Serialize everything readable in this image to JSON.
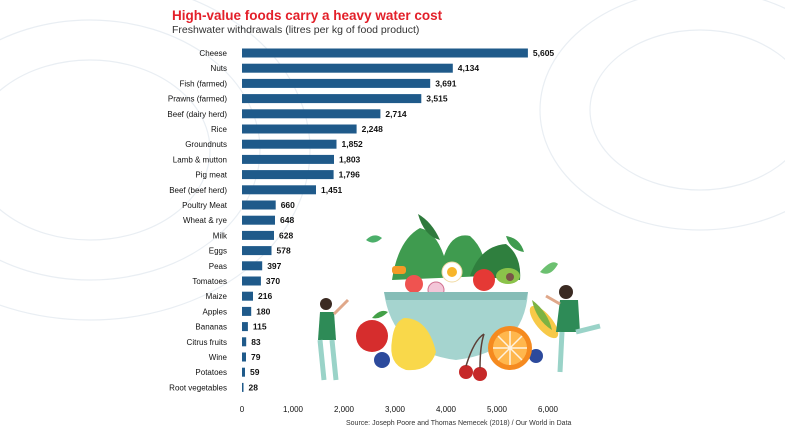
{
  "chart_data": {
    "type": "bar",
    "orientation": "horizontal",
    "title": "High-value foods carry a heavy water cost",
    "subtitle": "Freshwater withdrawals (litres per kg of food product)",
    "categories": [
      "Cheese",
      "Nuts",
      "Fish (farmed)",
      "Prawns (farmed)",
      "Beef (dairy herd)",
      "Rice",
      "Groundnuts",
      "Lamb & mutton",
      "Pig meat",
      "Beef (beef herd)",
      "Poultry Meat",
      "Wheat & rye",
      "Milk",
      "Eggs",
      "Peas",
      "Tomatoes",
      "Maize",
      "Apples",
      "Bananas",
      "Citrus fruits",
      "Wine",
      "Potatoes",
      "Root vegetables"
    ],
    "values": [
      5605,
      4134,
      3691,
      3515,
      2714,
      2248,
      1852,
      1803,
      1796,
      1451,
      660,
      648,
      628,
      578,
      397,
      370,
      216,
      180,
      115,
      83,
      79,
      59,
      28
    ],
    "value_labels": [
      "5,605",
      "4,134",
      "3,691",
      "3,515",
      "2,714",
      "2,248",
      "1,852",
      "1,803",
      "1,796",
      "1,451",
      "660",
      "648",
      "628",
      "578",
      "397",
      "370",
      "216",
      "180",
      "115",
      "83",
      "79",
      "59",
      "28"
    ],
    "xlim": [
      0,
      6000
    ],
    "xticks": [
      0,
      1000,
      2000,
      3000,
      4000,
      5000,
      6000
    ],
    "xtick_labels": [
      "0",
      "1,000",
      "2,000",
      "3,000",
      "4,000",
      "5,000",
      "6,000"
    ],
    "xlabel": "",
    "ylabel": "",
    "bar_color": "#1f5a8a",
    "grid": false,
    "source": "Source: Joseph Poore and Thomas Nemecek (2018) / Our World in Data"
  },
  "colors": {
    "title": "#e3202a",
    "bar": "#1f5a8a",
    "text": "#111111"
  }
}
